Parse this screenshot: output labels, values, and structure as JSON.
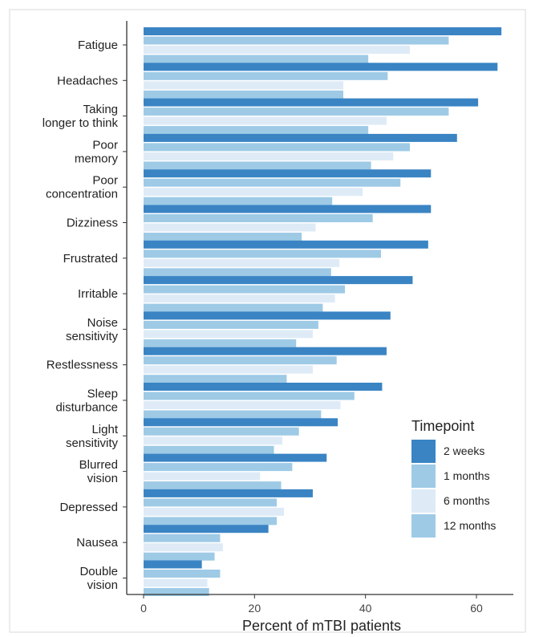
{
  "chart_data": {
    "type": "bar",
    "orientation": "horizontal",
    "title": "",
    "xlabel": "Percent of mTBI patients",
    "ylabel": "",
    "xlim": [
      0,
      65
    ],
    "x_ticks": [
      0,
      20,
      40,
      60
    ],
    "grid": false,
    "legend_title": "Timepoint",
    "legend_position": "bottom-right",
    "categories": [
      [
        "Fatigue"
      ],
      [
        "Headaches"
      ],
      [
        "Taking",
        "longer to think"
      ],
      [
        "Poor",
        "memory"
      ],
      [
        "Poor",
        "concentration"
      ],
      [
        "Dizziness"
      ],
      [
        "Frustrated"
      ],
      [
        "Irritable"
      ],
      [
        "Noise",
        "sensitivity"
      ],
      [
        "Restlessness"
      ],
      [
        "Sleep",
        "disturbance"
      ],
      [
        "Light",
        "sensitivity"
      ],
      [
        "Blurred",
        "vision"
      ],
      [
        "Depressed"
      ],
      [
        "Nausea"
      ],
      [
        "Double",
        "vision"
      ]
    ],
    "series": [
      {
        "name": "2 weeks",
        "color": "#3a84c4",
        "values": [
          64.5,
          63.8,
          60.3,
          56.5,
          51.8,
          51.8,
          51.3,
          48.5,
          44.5,
          43.8,
          43.0,
          35.0,
          33.0,
          30.5,
          22.5,
          10.5
        ]
      },
      {
        "name": "1 months",
        "color": "#9ecae6",
        "values": [
          55.0,
          44.0,
          55.0,
          48.0,
          46.3,
          41.3,
          42.8,
          36.3,
          31.5,
          34.8,
          38.0,
          28.0,
          26.8,
          24.0,
          13.8,
          13.8
        ]
      },
      {
        "name": "6 months",
        "color": "#deebf7",
        "values": [
          48.0,
          36.0,
          43.8,
          45.0,
          39.5,
          31.0,
          35.3,
          34.5,
          30.5,
          30.5,
          35.5,
          25.0,
          21.0,
          25.3,
          14.3,
          11.5
        ]
      },
      {
        "name": "12 months",
        "color": "#9ecae6",
        "values": [
          40.5,
          36.0,
          40.5,
          41.0,
          34.0,
          28.5,
          33.8,
          32.3,
          27.5,
          25.8,
          32.0,
          23.5,
          24.8,
          24.0,
          12.8,
          11.8
        ]
      }
    ]
  }
}
